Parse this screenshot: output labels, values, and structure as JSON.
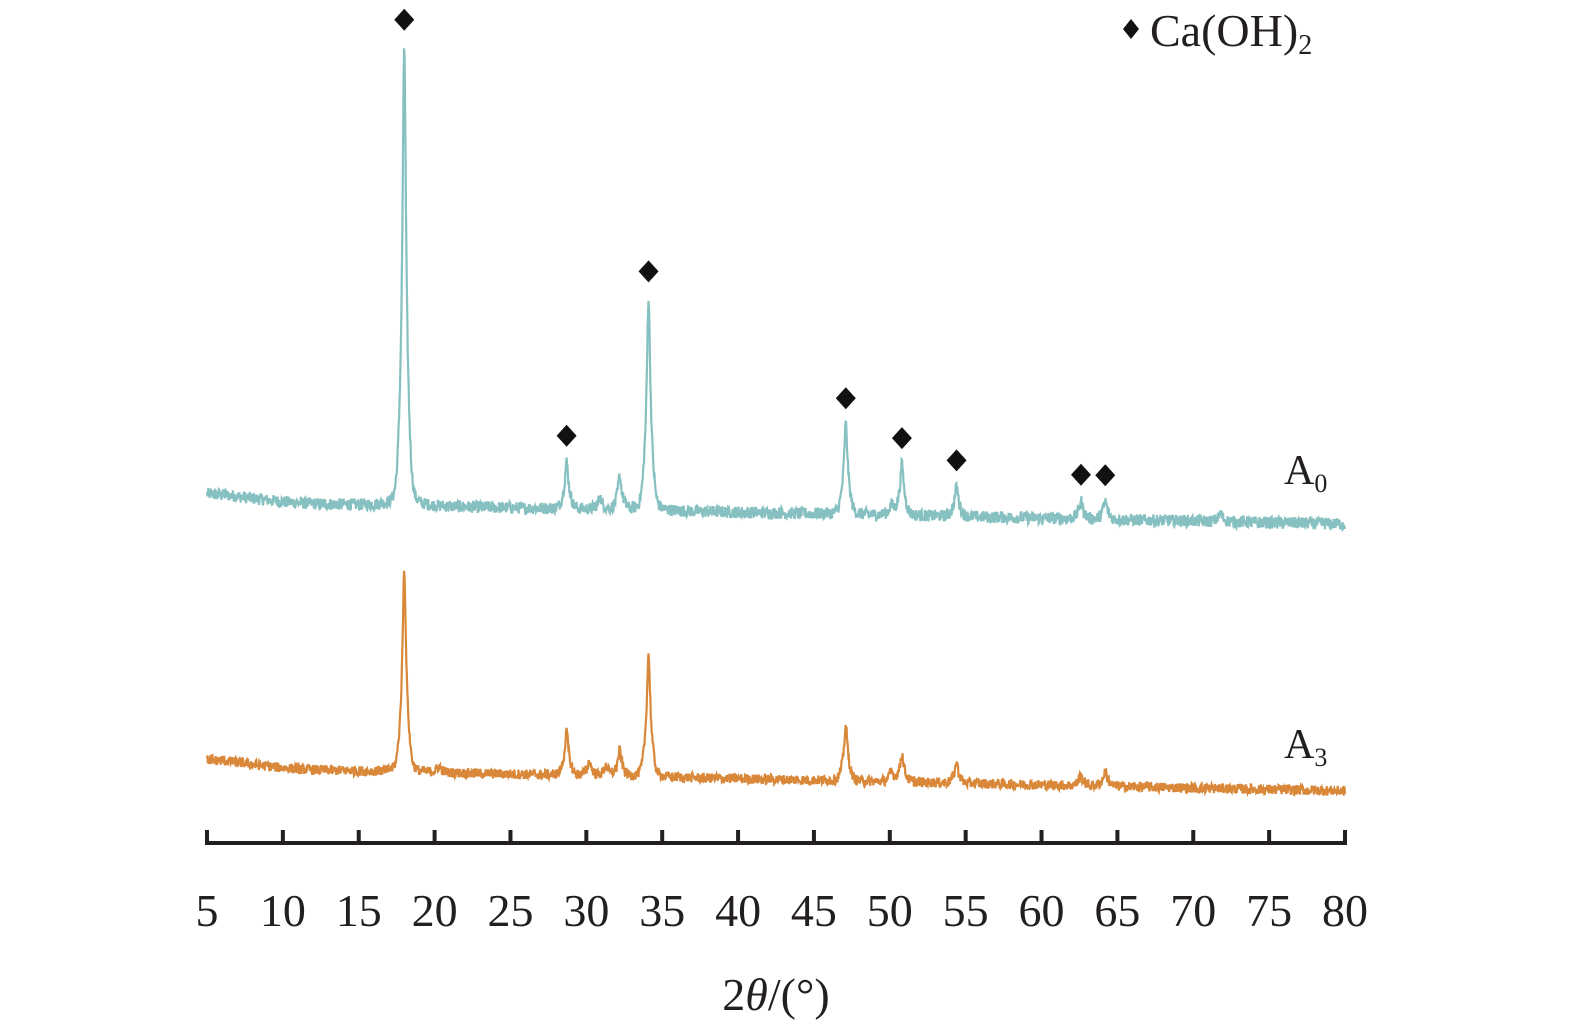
{
  "chart_data": {
    "type": "line",
    "title": "",
    "xlabel": "2θ/(°)",
    "xlabel_parts": {
      "pre": "2",
      "theta": "θ",
      "post": "/(°)"
    },
    "ylabel": "",
    "xlim": [
      5,
      80
    ],
    "ylim": [
      0,
      830
    ],
    "x_ticks": [
      5,
      10,
      15,
      20,
      25,
      30,
      35,
      40,
      45,
      50,
      55,
      60,
      65,
      70,
      75,
      80
    ],
    "grid": false,
    "legend": {
      "position": "top-right",
      "symbol": "diamond",
      "label_main": "Ca(OH)",
      "label_sub": "2"
    },
    "series": [
      {
        "name": "A0",
        "label_main": "A",
        "label_sub": "0",
        "color": "#86c0c0",
        "baseline_start": 328,
        "baseline_end": 306,
        "noise": 6,
        "peaks": [
          [
            18.0,
            460
          ],
          [
            28.7,
            47
          ],
          [
            30.9,
            12
          ],
          [
            32.2,
            33
          ],
          [
            34.1,
            213
          ],
          [
            47.1,
            90
          ],
          [
            50.1,
            10
          ],
          [
            50.8,
            51
          ],
          [
            54.4,
            30
          ],
          [
            62.6,
            18
          ],
          [
            64.2,
            18
          ],
          [
            71.8,
            8
          ]
        ],
        "markers": [
          18.0,
          28.7,
          34.1,
          47.1,
          50.8,
          54.4,
          62.6,
          64.2
        ]
      },
      {
        "name": "A3",
        "label_main": "A",
        "label_sub": "3",
        "color": "#d9883a",
        "baseline_start": 62,
        "baseline_end": 39,
        "noise": 5,
        "peaks": [
          [
            18.0,
            202
          ],
          [
            20.3,
            6
          ],
          [
            28.7,
            43
          ],
          [
            30.2,
            14
          ],
          [
            31.3,
            10
          ],
          [
            32.2,
            25
          ],
          [
            34.1,
            122
          ],
          [
            47.1,
            55
          ],
          [
            50.1,
            10
          ],
          [
            50.8,
            28
          ],
          [
            54.4,
            20
          ],
          [
            62.6,
            10
          ],
          [
            64.2,
            15
          ]
        ],
        "markers": []
      }
    ]
  }
}
